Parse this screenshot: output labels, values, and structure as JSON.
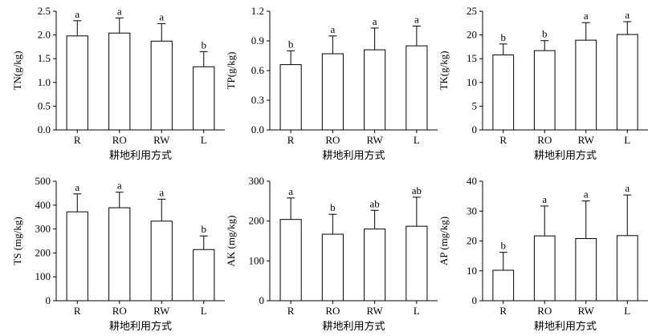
{
  "chart_data": [
    {
      "type": "bar",
      "ylabel": "TN(g/kg)",
      "xlabel": "耕地利用方式",
      "categories": [
        "R",
        "RO",
        "RW",
        "L"
      ],
      "values": [
        1.98,
        2.04,
        1.87,
        1.33
      ],
      "errors": [
        0.32,
        0.32,
        0.37,
        0.32
      ],
      "letters": [
        "a",
        "a",
        "a",
        "b"
      ],
      "ylim": [
        0,
        2.5
      ],
      "yticks": [
        "0.0",
        "0.5",
        "1.0",
        "1.5",
        "2.0",
        "2.5"
      ]
    },
    {
      "type": "bar",
      "ylabel": "TP(g/kg)",
      "xlabel": "耕地利用方式",
      "categories": [
        "R",
        "RO",
        "RW",
        "L"
      ],
      "values": [
        0.66,
        0.77,
        0.81,
        0.85
      ],
      "errors": [
        0.14,
        0.18,
        0.22,
        0.2
      ],
      "letters": [
        "b",
        "a",
        "a",
        "a"
      ],
      "ylim": [
        0,
        1.2
      ],
      "yticks": [
        "0.0",
        "0.3",
        "0.6",
        "0.9",
        "1.2"
      ]
    },
    {
      "type": "bar",
      "ylabel": "TK(g/kg)",
      "xlabel": "耕地利用方式",
      "categories": [
        "R",
        "RO",
        "RW",
        "L"
      ],
      "values": [
        15.8,
        16.7,
        18.9,
        20.1
      ],
      "errors": [
        2.3,
        2.1,
        3.7,
        2.7
      ],
      "letters": [
        "b",
        "b",
        "a",
        "a"
      ],
      "ylim": [
        0,
        25
      ],
      "yticks": [
        "0",
        "5",
        "10",
        "15",
        "20",
        "25"
      ]
    },
    {
      "type": "bar",
      "ylabel": "TS (mg/kg)",
      "xlabel": "耕地利用方式",
      "categories": [
        "R",
        "RO",
        "RW",
        "L"
      ],
      "values": [
        372,
        389,
        333,
        214
      ],
      "errors": [
        75,
        65,
        92,
        57
      ],
      "letters": [
        "a",
        "a",
        "a",
        "b"
      ],
      "ylim": [
        0,
        500
      ],
      "yticks": [
        "0",
        "100",
        "200",
        "300",
        "400",
        "500"
      ]
    },
    {
      "type": "bar",
      "ylabel": "AK (mg/kg)",
      "xlabel": "耕地利用方式",
      "categories": [
        "R",
        "RO",
        "RW",
        "L"
      ],
      "values": [
        204,
        167,
        180,
        187
      ],
      "errors": [
        54,
        50,
        47,
        73
      ],
      "letters": [
        "a",
        "b",
        "ab",
        "ab"
      ],
      "ylim": [
        0,
        300
      ],
      "yticks": [
        "0",
        "100",
        "200",
        "300"
      ]
    },
    {
      "type": "bar",
      "ylabel": "AP (mg/kg)",
      "xlabel": "耕地利用方式",
      "categories": [
        "R",
        "RO",
        "RW",
        "L"
      ],
      "values": [
        10.2,
        21.7,
        20.8,
        21.8
      ],
      "errors": [
        6.0,
        10.0,
        12.6,
        13.6
      ],
      "letters": [
        "b",
        "a",
        "a",
        "a"
      ],
      "ylim": [
        0,
        40
      ],
      "yticks": [
        "0",
        "10",
        "20",
        "30",
        "40"
      ]
    }
  ]
}
